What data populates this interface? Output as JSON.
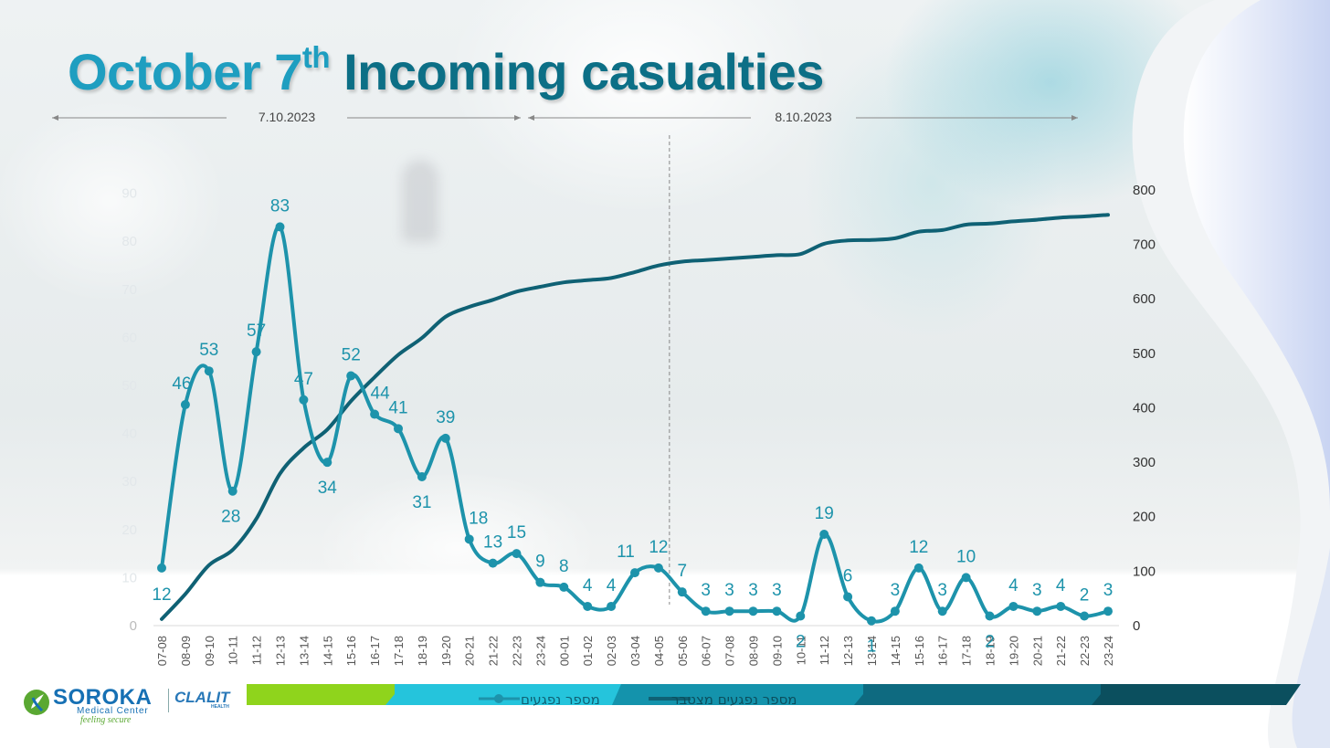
{
  "title": {
    "part1": "October 7",
    "superscript": "th",
    "part2": " Incoming casualties"
  },
  "date_ranges": [
    {
      "label": "7.10.2023"
    },
    {
      "label": "8.10.2023"
    }
  ],
  "legend": {
    "series1": "מספר נפגעים",
    "series2": "מספר נפגעים מצטבר"
  },
  "logos": {
    "soroka_name": "SOROKA",
    "soroka_sub": "Medical Center",
    "soroka_tag": "feeling secure",
    "clalit_name": "CLALIT",
    "clalit_sub": "HEALTH"
  },
  "colors": {
    "hourly_line": "#1d93ab",
    "cumulative_line": "#0f6174",
    "title_light": "#1e9ec0",
    "title_dark": "#0c6f86",
    "axis_text": "#555555",
    "footer_green": "#8fd41c",
    "footer_cyan": "#25c4dc",
    "footer_teal": "#0e7b92",
    "footer_dark": "#0b4f5e"
  },
  "chart_data": {
    "type": "line",
    "title": "October 7th Incoming casualties",
    "categories": [
      "07-08",
      "08-09",
      "09-10",
      "10-11",
      "11-12",
      "12-13",
      "13-14",
      "14-15",
      "15-16",
      "16-17",
      "17-18",
      "18-19",
      "19-20",
      "20-21",
      "21-22",
      "22-23",
      "23-24",
      "00-01",
      "01-02",
      "02-03",
      "03-04",
      "04-05",
      "05-06",
      "06-07",
      "07-08",
      "08-09",
      "09-10",
      "10-11",
      "11-12",
      "12-13",
      "13-14",
      "14-15",
      "15-16",
      "16-17",
      "17-18",
      "18-19",
      "19-20",
      "20-21",
      "21-22",
      "22-23",
      "23-24"
    ],
    "series": [
      {
        "name": "מספר נפגעים",
        "axis": "left",
        "values": [
          12,
          46,
          53,
          28,
          57,
          83,
          47,
          34,
          52,
          44,
          41,
          31,
          39,
          18,
          13,
          15,
          9,
          8,
          4,
          4,
          11,
          12,
          7,
          3,
          3,
          3,
          3,
          2,
          19,
          6,
          1,
          3,
          12,
          3,
          10,
          2,
          4,
          3,
          4,
          2,
          3
        ]
      },
      {
        "name": "מספר נפגעים מצטבר",
        "axis": "right",
        "values": [
          12,
          58,
          111,
          139,
          196,
          279,
          326,
          360,
          412,
          456,
          497,
          528,
          567,
          585,
          598,
          613,
          622,
          630,
          634,
          638,
          649,
          661,
          668,
          671,
          674,
          677,
          680,
          682,
          701,
          707,
          708,
          711,
          723,
          726,
          736,
          738,
          742,
          745,
          749,
          751,
          754
        ]
      }
    ],
    "left_axis": {
      "ticks": [
        "0",
        "10",
        "20",
        "30",
        "40",
        "50",
        "60",
        "70",
        "80",
        "90"
      ],
      "ylim": [
        0,
        90
      ]
    },
    "right_axis": {
      "ticks": [
        "0",
        "100",
        "200",
        "300",
        "400",
        "500",
        "600",
        "700",
        "800"
      ],
      "ylim": [
        0,
        800
      ]
    },
    "day_split_after_category_index": 22,
    "xlabel": "",
    "ylabel": ""
  }
}
